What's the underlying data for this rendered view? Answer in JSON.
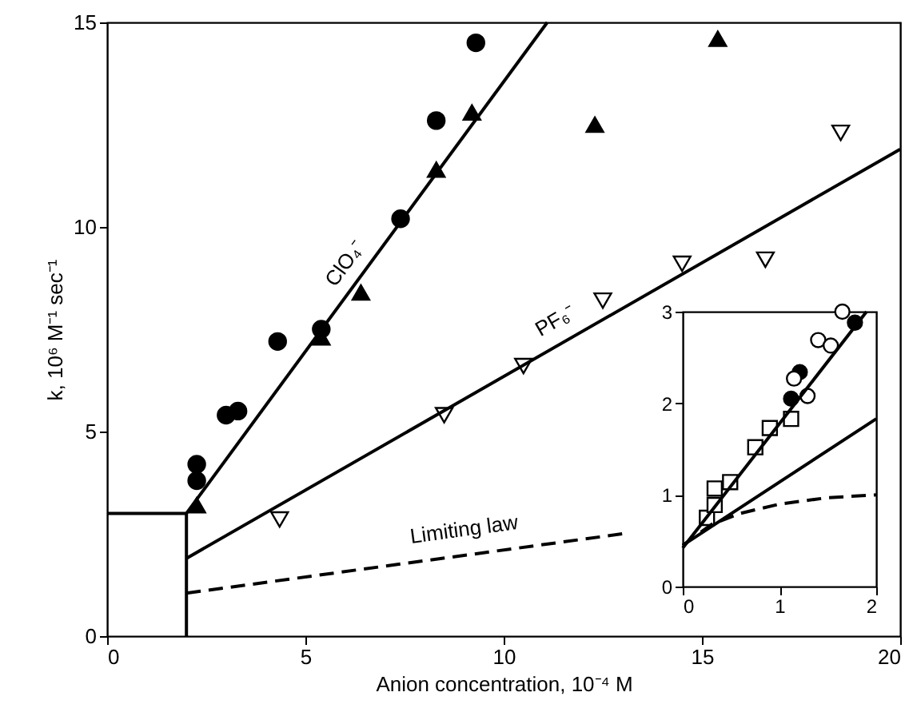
{
  "chart_data": [
    {
      "type": "scatter",
      "xlabel": "Anion concentration, 10⁻⁴ M",
      "ylabel": "k, 10⁶ M⁻¹ sec⁻¹",
      "xlim": [
        0,
        20
      ],
      "ylim": [
        0,
        15
      ],
      "xticks": [
        0,
        5,
        10,
        15,
        20
      ],
      "yticks": [
        0,
        5,
        10,
        15
      ],
      "grid": false,
      "series": [
        {
          "marker": "circle",
          "color": "#000000",
          "x": [
            2.26,
            2.26,
            3.0,
            3.3,
            4.3,
            5.4,
            7.4,
            8.3,
            9.3
          ],
          "values": [
            4.2,
            3.8,
            5.4,
            5.5,
            7.2,
            7.5,
            10.2,
            12.6,
            14.5
          ]
        },
        {
          "marker": "triangle",
          "color": "#000000",
          "x": [
            2.26,
            5.4,
            6.4,
            8.3,
            9.2,
            12.3,
            15.4
          ],
          "values": [
            3.2,
            7.3,
            8.4,
            11.4,
            12.8,
            12.5,
            14.6
          ]
        },
        {
          "marker": "triangle-down",
          "color": "#ffffff",
          "x": [
            4.35,
            8.5,
            10.5,
            12.5,
            14.5,
            16.6,
            18.5
          ],
          "values": [
            2.85,
            5.4,
            6.6,
            8.2,
            9.1,
            9.2,
            12.3
          ]
        },
        {
          "type": "line",
          "marker": "none",
          "line_style": "solid",
          "color": "#000000",
          "x": [
            2,
            11.1
          ],
          "values": [
            3.0,
            15
          ]
        },
        {
          "type": "line",
          "marker": "none",
          "line_style": "solid",
          "color": "#000000",
          "x": [
            2,
            20
          ],
          "values": [
            1.9,
            11.9
          ]
        },
        {
          "type": "line",
          "marker": "none",
          "line_style": "dashed",
          "color": "#000000",
          "x": [
            2,
            13
          ],
          "values": [
            1.05,
            2.5
          ]
        },
        {
          "type": "line",
          "marker": "none",
          "line_style": "solid",
          "color": "#000000",
          "x": [
            0,
            2,
            2
          ],
          "values": [
            3,
            3,
            0
          ]
        }
      ],
      "annotations": [
        "ClO₄⁻",
        "PF₆⁻",
        "Limiting law"
      ]
    },
    {
      "type": "scatter",
      "xlim": [
        0,
        2
      ],
      "ylim": [
        0,
        3
      ],
      "xticks": [
        0,
        1,
        2
      ],
      "yticks": [
        0,
        1,
        2,
        3
      ],
      "grid": false,
      "series": [
        {
          "marker": "square",
          "color": "#ffffff",
          "x": [
            0.25,
            0.33,
            0.33,
            0.49,
            0.75,
            0.9,
            1.12
          ],
          "values": [
            0.75,
            0.89,
            1.07,
            1.14,
            1.52,
            1.73,
            1.83
          ]
        },
        {
          "marker": "circle",
          "color": "#000000",
          "x": [
            1.12,
            1.21,
            1.78
          ],
          "values": [
            2.05,
            2.34,
            2.88
          ]
        },
        {
          "marker": "circle",
          "color": "#ffffff",
          "x": [
            1.29,
            1.15,
            1.4,
            1.53,
            1.65
          ],
          "values": [
            2.08,
            2.27,
            2.69,
            2.63,
            3.0
          ]
        },
        {
          "type": "line",
          "marker": "none",
          "line_style": "solid",
          "color": "#000000",
          "x": [
            0,
            1.9
          ],
          "values": [
            0.42,
            3.0
          ]
        },
        {
          "type": "line",
          "marker": "none",
          "line_style": "solid",
          "color": "#000000",
          "x": [
            0,
            2
          ],
          "values": [
            0.45,
            1.83
          ]
        },
        {
          "type": "line",
          "marker": "none",
          "line_style": "dashed",
          "color": "#000000",
          "x": [
            0,
            0.3,
            0.6,
            1,
            1.5,
            2
          ],
          "values": [
            0.45,
            0.68,
            0.8,
            0.9,
            0.97,
            1.0
          ]
        }
      ]
    }
  ]
}
